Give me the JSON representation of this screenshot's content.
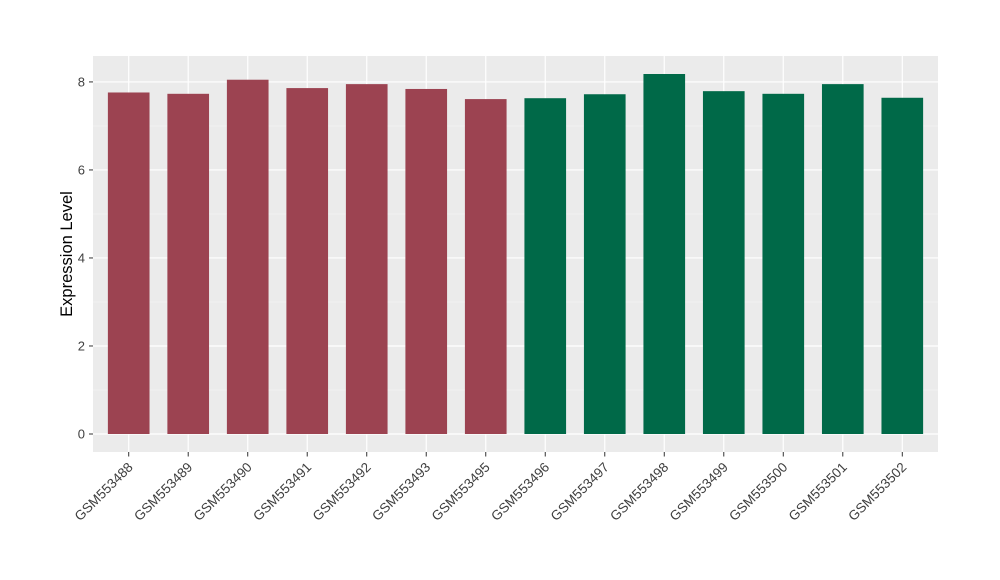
{
  "figure": {
    "background": "#FFFFFF"
  },
  "chart_data": {
    "type": "bar",
    "title": "",
    "xlabel": "",
    "ylabel": "Expression Level",
    "categories": [
      "GSM553488",
      "GSM553489",
      "GSM553490",
      "GSM553491",
      "GSM553492",
      "GSM553493",
      "GSM553495",
      "GSM553496",
      "GSM553497",
      "GSM553498",
      "GSM553499",
      "GSM553500",
      "GSM553501",
      "GSM553502"
    ],
    "values": [
      7.76,
      7.73,
      8.05,
      7.86,
      7.95,
      7.84,
      7.61,
      7.63,
      7.72,
      8.18,
      7.79,
      7.73,
      7.95,
      7.64
    ],
    "bar_groups": [
      "A",
      "A",
      "A",
      "A",
      "A",
      "A",
      "A",
      "B",
      "B",
      "B",
      "B",
      "B",
      "B",
      "B"
    ],
    "group_colors": {
      "A": "#9C4351",
      "B": "#006948"
    },
    "yticks": [
      0,
      2,
      4,
      6,
      8
    ],
    "minor_yticks": [
      1,
      3,
      5,
      7
    ],
    "ylim": [
      0,
      8.6
    ],
    "bar_width_fraction": 0.7,
    "grid": "on",
    "legend": "none",
    "x_label_rotation": -45,
    "panel_background": "#EBEBEB",
    "grid_major_color": "#FFFFFF",
    "grid_minor_color": "#F5F5F5",
    "tick_mark_color": "#333333",
    "axis_text_color": "#404040",
    "axis_title_color": "#000000"
  }
}
